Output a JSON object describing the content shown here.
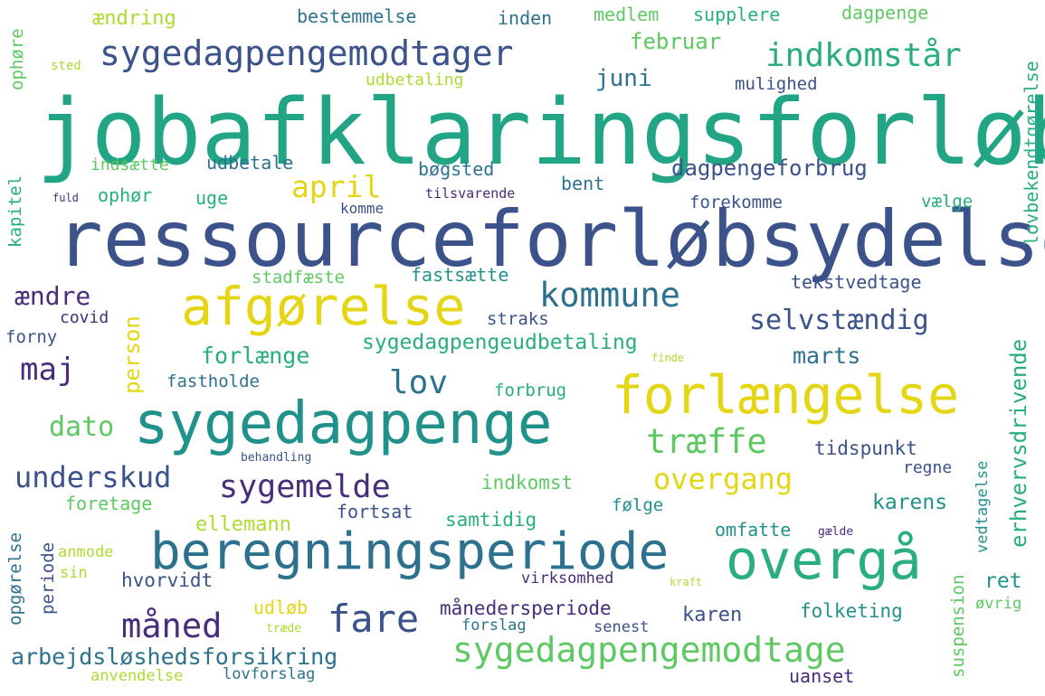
{
  "words": {
    "jobafklaringsforloeb": "jobafklaringsforløb",
    "ressourceforloebsydelse": "ressourceforløbsydelse",
    "sygedagpenge": "sygedagpenge",
    "beregningsperiode": "beregningsperiode",
    "forlaengelse": "forlængelse",
    "afgoerelse": "afgørelse",
    "overgaa": "overgå",
    "sygedagpengemodtager": "sygedagpengemodtager",
    "sygedagpengemodtage": "sygedagpengemodtage",
    "indkomstaar": "indkomstår",
    "kommune": "kommune",
    "selvstaendig": "selvstændig",
    "traeffe": "træffe",
    "overgang": "overgang",
    "sygemelde": "sygemelde",
    "underskud": "underskud",
    "maaned": "måned",
    "fare": "fare",
    "lov": "lov",
    "april": "april",
    "maj": "maj",
    "dato": "dato",
    "aendre": "ændre",
    "arbejdsloeshedsforsikring": "arbejdsløshedsforsikring",
    "dagpengeforbrug": "dagpengeforbrug",
    "februar": "februar",
    "juni": "juni",
    "sygedagpengeudbetaling": "sygedagpengeudbetaling",
    "erhvervsdrivende": "erhvervsdrivende",
    "karens": "karens",
    "marts": "marts",
    "person": "person",
    "forlaenge": "forlænge",
    "maanedersperiode": "månedersperiode",
    "bestemmelse": "bestemmelse",
    "inden": "inden",
    "medlem": "medlem",
    "supplere": "supplere",
    "dagpenge": "dagpenge",
    "aendring": "ændring",
    "ophoere": "ophøre",
    "sted": "sted",
    "udbetaling": "udbetaling",
    "mulighed": "mulighed",
    "lovbekendtgoerelse": "lovbekendtgørelse",
    "indsaette": "indsætte",
    "udbetale": "udbetale",
    "boegsted": "bøgsted",
    "bent": "bent",
    "ophoer": "ophør",
    "uge": "uge",
    "tilsvarende": "tilsvarende",
    "fuld": "fuld",
    "kapitel": "kapitel",
    "komme": "komme",
    "forekomme": "forekomme",
    "vaelge": "vælge",
    "stadfaeste": "stadfæste",
    "fastsaette": "fastsætte",
    "tekstvedtage": "tekstvedtage",
    "covid": "covid",
    "straks": "straks",
    "forny": "forny",
    "finde": "finde",
    "fastholde": "fastholde",
    "forbrug": "forbrug",
    "behandling": "behandling",
    "tidspunkt": "tidspunkt",
    "regne": "regne",
    "indkomst": "indkomst",
    "foretage": "foretage",
    "foelge": "følge",
    "vedtagelse": "vedtagelse",
    "ellemann": "ellemann",
    "fortsat": "fortsat",
    "samtidig": "samtidig",
    "omfatte": "omfatte",
    "gaelde": "gælde",
    "anmode": "anmode",
    "opgoerelse": "opgørelse",
    "periode": "periode",
    "sin": "sin",
    "hvorvidt": "hvorvidt",
    "virksomhed": "virksomhed",
    "kraft": "kraft",
    "suspension": "suspension",
    "ret": "ret",
    "udloeb": "udløb",
    "traede": "træde",
    "forslag": "forslag",
    "senest": "senest",
    "karen": "karen",
    "folketing": "folketing",
    "oevrig": "øvrig",
    "anvendelse": "anvendelse",
    "lovforslag": "lovforslag",
    "uanset": "uanset"
  },
  "colors": {
    "purple": "#472d7b",
    "indigo": "#3b528b",
    "blue": "#2c728e",
    "teal": "#21918c",
    "green": "#28ae80",
    "lightgreen": "#5ec962",
    "lime": "#addc30",
    "yellow": "#e4d614"
  }
}
